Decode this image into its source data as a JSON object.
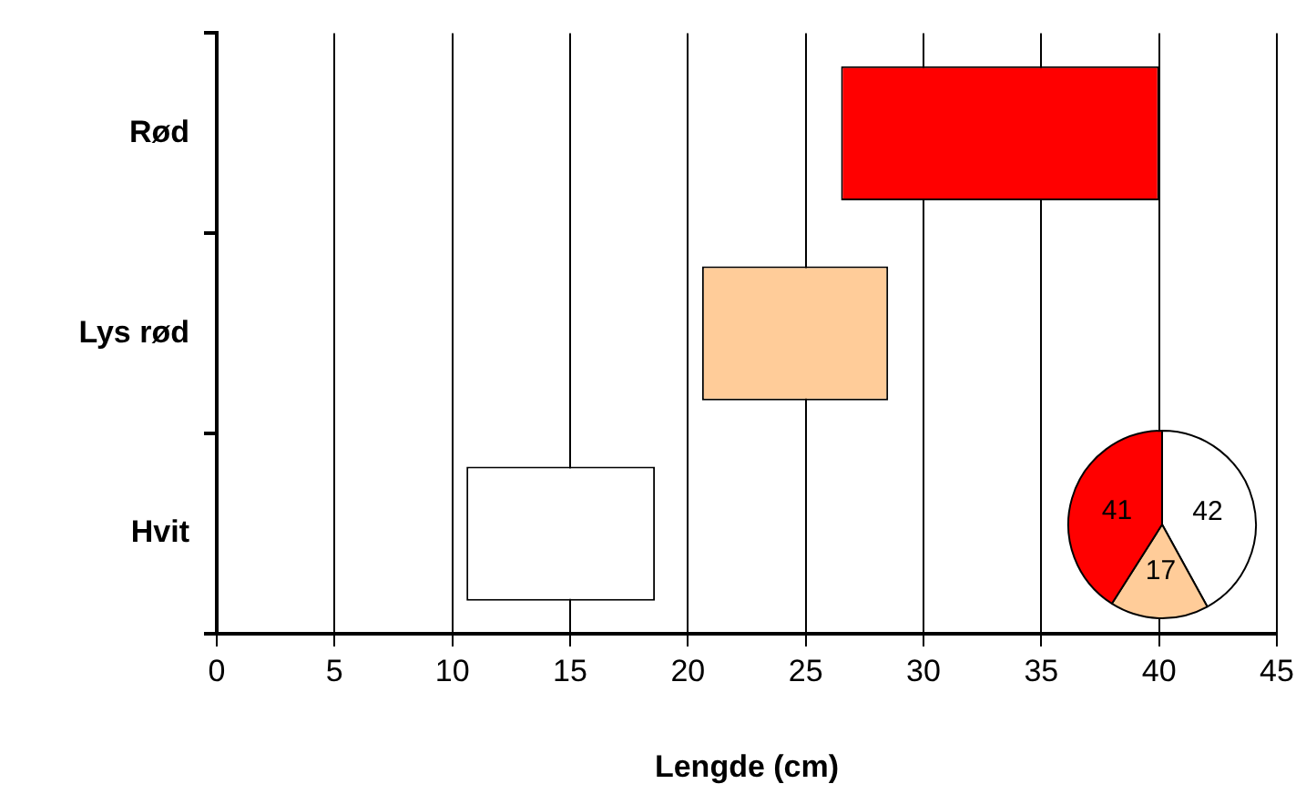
{
  "chart_data": [
    {
      "type": "bar",
      "orientation": "horizontal",
      "xlabel": "Lengde (cm)",
      "categories": [
        "Rød",
        "Lys rød",
        "Hvit"
      ],
      "base": [
        26.5,
        20.6,
        10.6
      ],
      "values": [
        13.5,
        7.9,
        8.0
      ],
      "colors": [
        "#ff0000",
        "#ffcc99",
        "#ffffff"
      ],
      "xlim": [
        0,
        45
      ],
      "xticks": [
        0,
        5,
        10,
        15,
        20,
        25,
        30,
        35,
        40,
        45
      ],
      "grid": "x",
      "legend": false
    },
    {
      "type": "pie",
      "categories": [
        null,
        null,
        null
      ],
      "values": [
        42,
        17,
        41
      ],
      "colors": [
        "#ffffff",
        "#ffcc99",
        "#ff0000"
      ],
      "data_labels": true,
      "legend": false
    }
  ]
}
